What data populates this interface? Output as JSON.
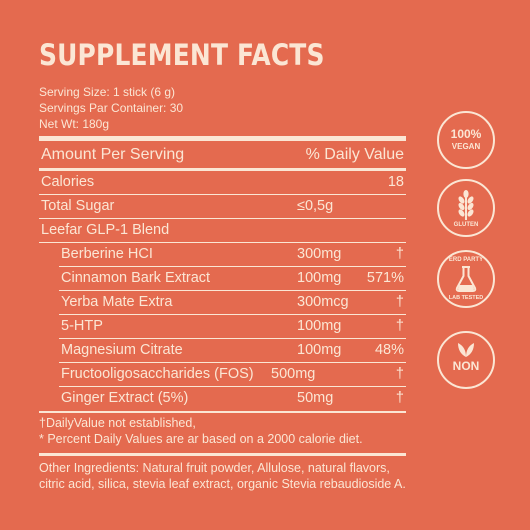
{
  "title": "SUPPLEMENT FACTS",
  "meta": {
    "serving_size": "Serving Size: 1 stick (6 g)",
    "servings": "Servings Par Container: 30",
    "net_wt": "Net Wt: 180g"
  },
  "header": {
    "amount": "Amount Per Serving",
    "daily_value": "% Daily Value"
  },
  "rows": [
    {
      "label": "Calories",
      "amount": "",
      "dv": "18"
    },
    {
      "label": "Total Sugar",
      "amount": "≤0,5g",
      "dv": ""
    },
    {
      "label": "Leefar GLP-1 Blend",
      "amount": "",
      "dv": ""
    },
    {
      "label": "Berberine HCI",
      "amount": "300mg",
      "dv": "†"
    },
    {
      "label": "Cinnamon Bark Extract",
      "amount": "100mg",
      "dv": "571%"
    },
    {
      "label": "Yerba Mate Extra",
      "amount": "300mcg",
      "dv": "†"
    },
    {
      "label": "5-HTP",
      "amount": "100mg",
      "dv": "†"
    },
    {
      "label": "Magnesium Citrate",
      "amount": "100mg",
      "dv": "48%"
    },
    {
      "label": "Fructooligosaccharides (FOS)",
      "amount": "500mg",
      "dv": "†"
    },
    {
      "label": "Ginger Extract (5%)",
      "amount": "50mg",
      "dv": "†"
    }
  ],
  "footnotes": {
    "dagger": "†DailyValue not established,",
    "asterisk": "* Percent Daily Values are ar based on a 2000 calorie diet."
  },
  "ingredients": {
    "label": "Other Ingredients:",
    "text": " Natural fruit powder, Allulose, natural flavors, citric acid, silica, stevia leaf extract, organic Stevia rebaudioside A."
  },
  "badges": {
    "vegan": {
      "line1": "100%",
      "line2": "VEGAN"
    },
    "gluten": {
      "label": "GLUTEN",
      "icon": "wheat-icon"
    },
    "lab": {
      "top": "ERD PARTY",
      "bottom": "LAB TESTED",
      "icon": "flask-icon"
    },
    "non": {
      "label": "NON",
      "icon": "leaf-icon"
    }
  },
  "colors": {
    "background": "#e46a4f",
    "text": "#fbe6d4"
  }
}
